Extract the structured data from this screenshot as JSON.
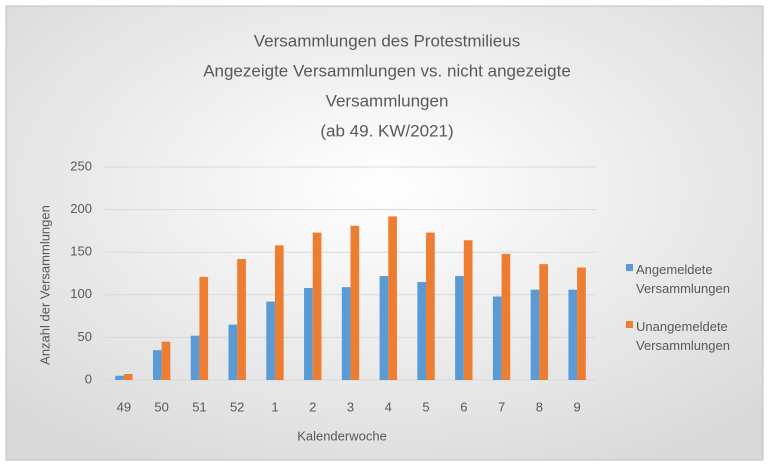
{
  "chart_data": {
    "type": "bar",
    "title": [
      "Versammlungen des Protestmilieus",
      "Angezeigte Versammlungen vs. nicht angezeigte",
      "Versammlungen",
      "(ab 49. KW/2021)"
    ],
    "x_label": "Kalenderwoche",
    "y_label": "Anzahl der Versammlungen",
    "categories": [
      "49",
      "50",
      "51",
      "52",
      "1",
      "2",
      "3",
      "4",
      "5",
      "6",
      "7",
      "8",
      "9"
    ],
    "series": [
      {
        "name": "Angemeldete Versammlungen",
        "color": "#5b9bd5",
        "values": [
          5,
          35,
          52,
          65,
          92,
          108,
          109,
          122,
          115,
          122,
          98,
          106,
          106
        ]
      },
      {
        "name": "Unangemeldete Versammlungen",
        "color": "#ed7d31",
        "values": [
          7,
          45,
          121,
          142,
          158,
          173,
          181,
          192,
          173,
          164,
          148,
          136,
          132
        ]
      }
    ],
    "ylim": [
      0,
      250
    ],
    "yticks": [
      0,
      50,
      100,
      150,
      200,
      250
    ],
    "grid": true,
    "legend": "right"
  }
}
